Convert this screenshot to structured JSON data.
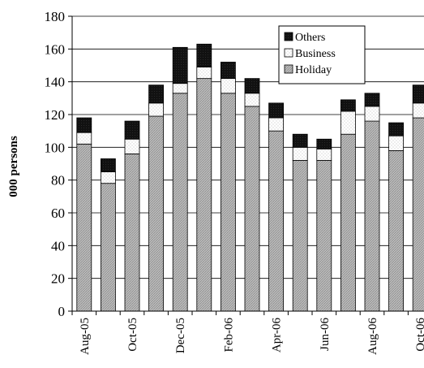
{
  "chart_data": {
    "type": "bar",
    "stacked": true,
    "ylabel": "000 persons",
    "xlabel": "",
    "ylim": [
      0,
      180
    ],
    "yticks": [
      0,
      20,
      40,
      60,
      80,
      100,
      120,
      140,
      160,
      180
    ],
    "grid": true,
    "legend_position": "top-right",
    "categories": [
      "Aug-05",
      "Sep-05",
      "Oct-05",
      "Nov-05",
      "Dec-05",
      "Jan-06",
      "Feb-06",
      "Mar-06",
      "Apr-06",
      "May-06",
      "Jun-06",
      "Jul-06",
      "Aug-06",
      "Sep-06",
      "Oct-06"
    ],
    "tick_labels": [
      "Aug-05",
      "",
      "Oct-05",
      "",
      "Dec-05",
      "",
      "Feb-06",
      "",
      "Apr-06",
      "",
      "Jun-06",
      "",
      "Aug-06",
      "",
      "Oct-06"
    ],
    "series": [
      {
        "name": "Holiday",
        "values": [
          102,
          78,
          96,
          119,
          133,
          142,
          133,
          125,
          110,
          92,
          92,
          108,
          116,
          98,
          118
        ],
        "color": "#b8b8b8",
        "pattern": "diagonal"
      },
      {
        "name": "Business",
        "values": [
          7,
          7,
          9,
          8,
          6,
          7,
          9,
          8,
          8,
          8,
          7,
          14,
          9,
          9,
          9
        ],
        "color": "#ffffff",
        "pattern": "dotted"
      },
      {
        "name": "Others",
        "values": [
          9,
          8,
          11,
          11,
          22,
          14,
          10,
          9,
          9,
          8,
          6,
          7,
          8,
          8,
          11
        ],
        "color": "#1a1a1a",
        "pattern": "solid"
      }
    ],
    "legend_order": [
      "Others",
      "Business",
      "Holiday"
    ]
  }
}
